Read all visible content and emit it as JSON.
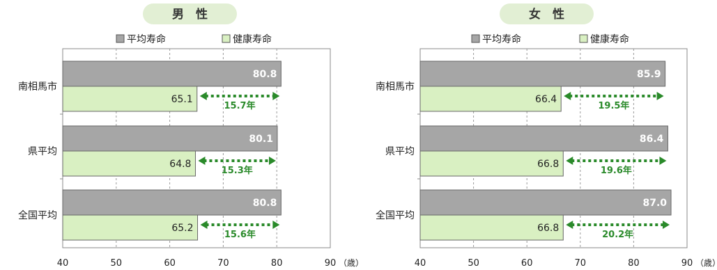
{
  "chart_data": [
    {
      "type": "bar",
      "title": "男　性",
      "categories": [
        "南相馬市",
        "県平均",
        "全国平均"
      ],
      "series": [
        {
          "name": "平均寿命",
          "values": [
            80.8,
            80.1,
            80.8
          ],
          "color": "#a6a6a6"
        },
        {
          "name": "健康寿命",
          "values": [
            65.1,
            64.8,
            65.2
          ],
          "color": "#d9f0c2"
        }
      ],
      "gap_labels": [
        "15.7年",
        "15.3年",
        "15.6年"
      ],
      "xlim": [
        40,
        90
      ],
      "xticks": [
        "40",
        "50",
        "60",
        "70",
        "80",
        "90"
      ],
      "xunit": "（歳）",
      "legend": "top",
      "grid": "dashed-vertical"
    },
    {
      "type": "bar",
      "title": "女　性",
      "categories": [
        "南相馬市",
        "県平均",
        "全国平均"
      ],
      "series": [
        {
          "name": "平均寿命",
          "values": [
            85.9,
            86.4,
            87.0
          ],
          "color": "#a6a6a6"
        },
        {
          "name": "健康寿命",
          "values": [
            66.4,
            66.8,
            66.8
          ],
          "color": "#d9f0c2"
        }
      ],
      "gap_labels": [
        "19.5年",
        "19.6年",
        "20.2年"
      ],
      "xlim": [
        40,
        90
      ],
      "xticks": [
        "40",
        "50",
        "60",
        "70",
        "80",
        "90"
      ],
      "xunit": "（歳）",
      "legend": "top",
      "grid": "dashed-vertical"
    }
  ]
}
